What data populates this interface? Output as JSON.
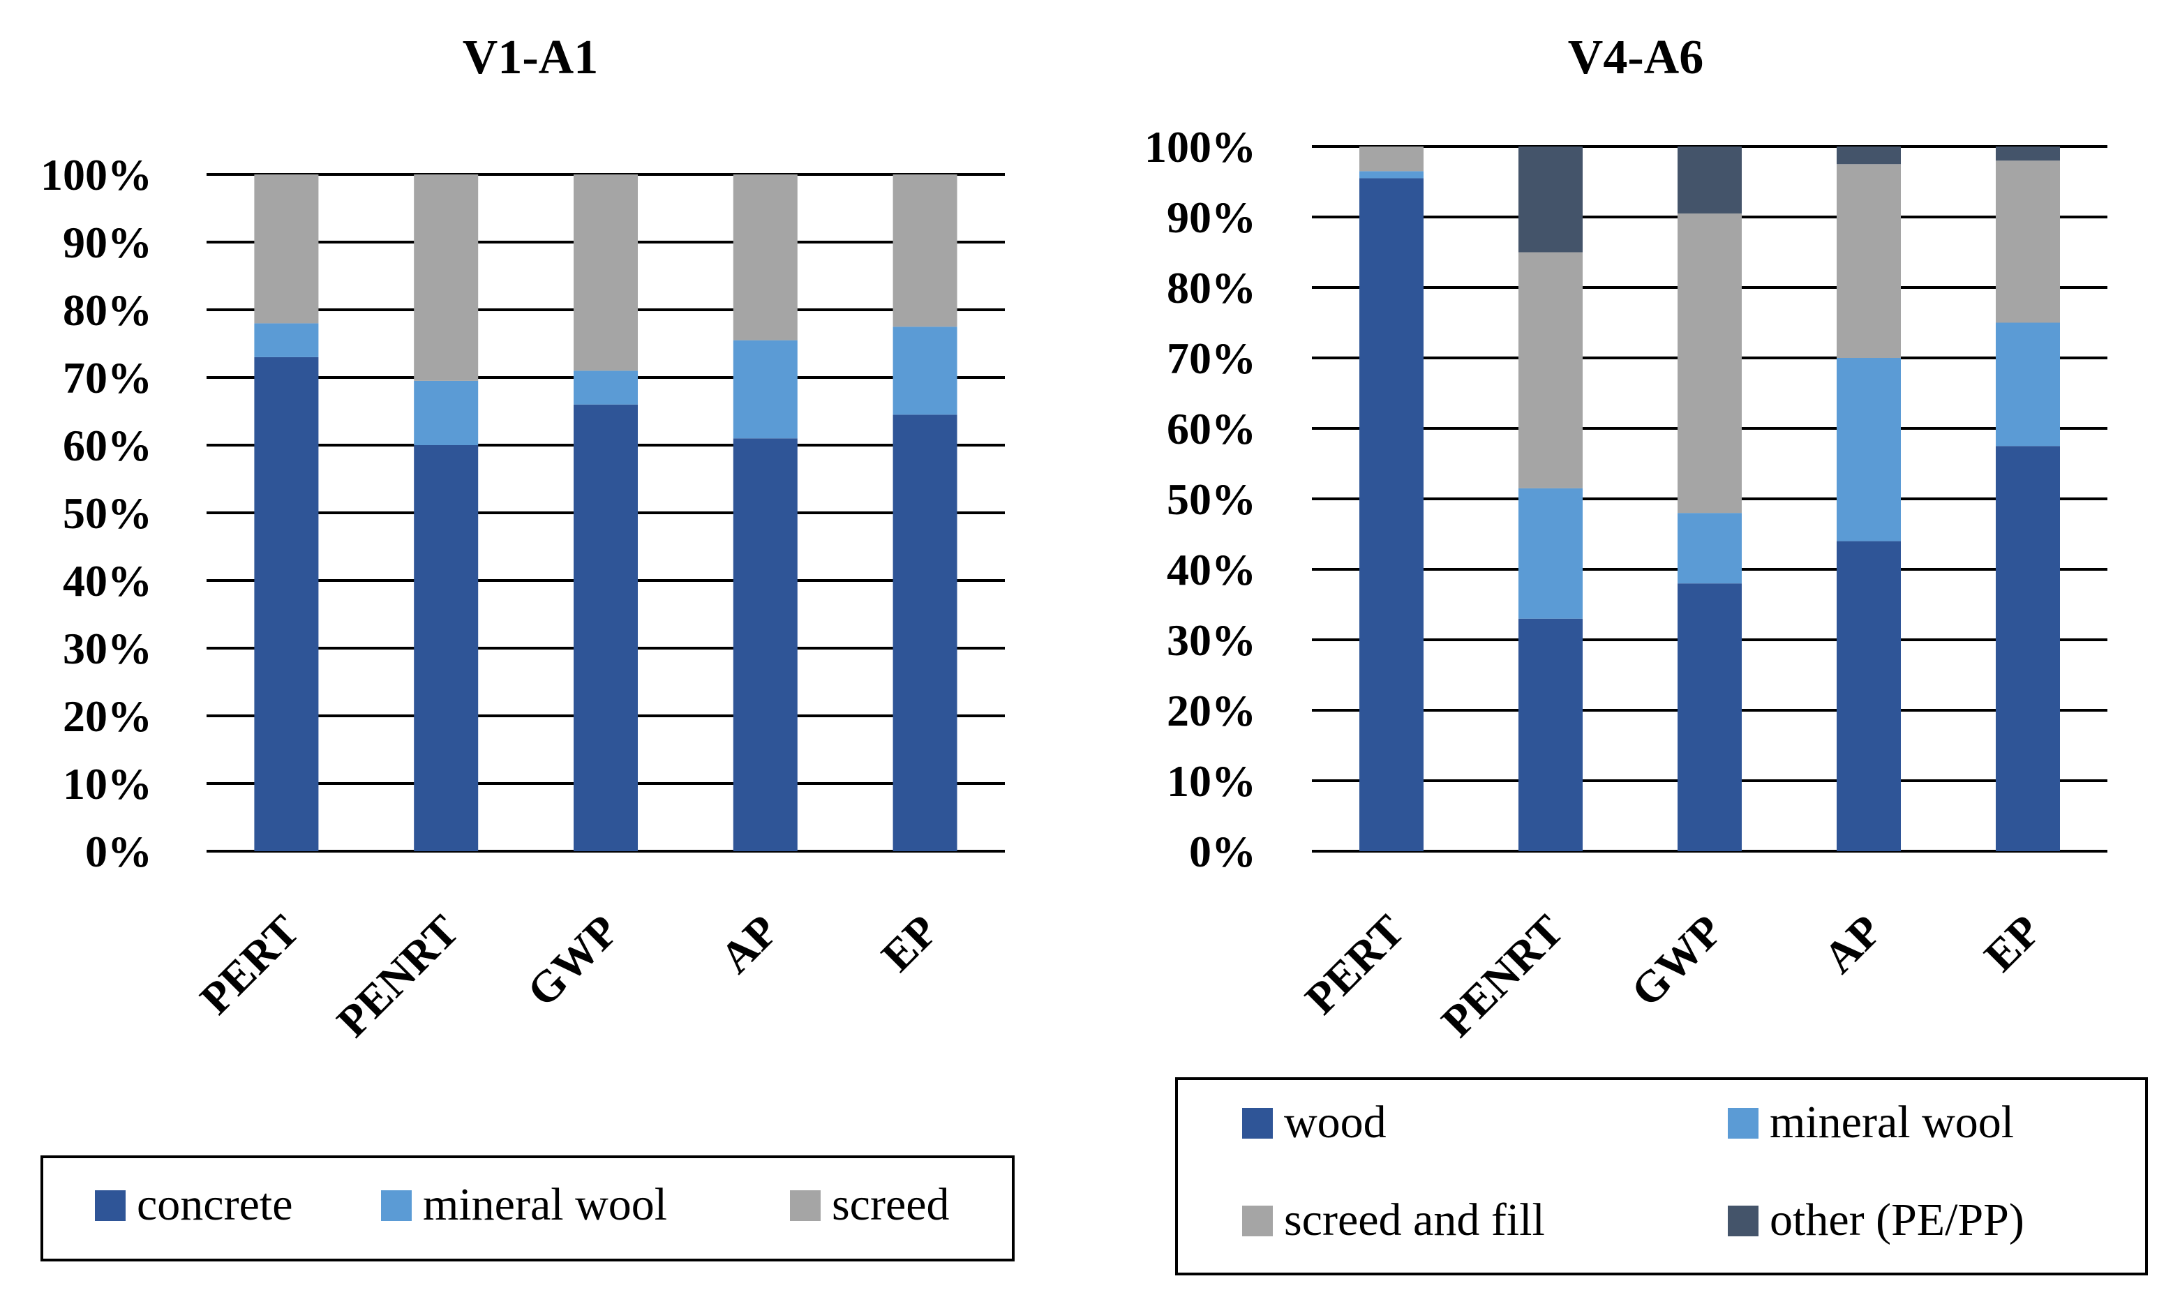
{
  "chart_data": [
    {
      "type": "bar",
      "stacked": true,
      "title": "V1-A1",
      "categories": [
        "PERT",
        "PENRT",
        "GWP",
        "AP",
        "EP"
      ],
      "ylim": [
        0,
        100
      ],
      "yticks": [
        "0%",
        "10%",
        "20%",
        "30%",
        "40%",
        "50%",
        "60%",
        "70%",
        "80%",
        "90%",
        "100%"
      ],
      "grid": true,
      "legend_position": "bottom",
      "series": [
        {
          "name": "concrete",
          "color": "#2F5597",
          "values": [
            73,
            60,
            66,
            61,
            64.5
          ]
        },
        {
          "name": "mineral wool",
          "color": "#5B9BD5",
          "values": [
            5,
            9.5,
            5,
            14.5,
            13
          ]
        },
        {
          "name": "screed",
          "color": "#A5A5A5",
          "values": [
            22,
            30.5,
            29,
            24.5,
            22.5
          ]
        }
      ]
    },
    {
      "type": "bar",
      "stacked": true,
      "title": "V4-A6",
      "categories": [
        "PERT",
        "PENRT",
        "GWP",
        "AP",
        "EP"
      ],
      "ylim": [
        0,
        100
      ],
      "yticks": [
        "0%",
        "10%",
        "20%",
        "30%",
        "40%",
        "50%",
        "60%",
        "70%",
        "80%",
        "90%",
        "100%"
      ],
      "grid": true,
      "legend_position": "bottom",
      "series": [
        {
          "name": "wood",
          "color": "#2F5597",
          "values": [
            95.5,
            33,
            38,
            44,
            57.5
          ]
        },
        {
          "name": "mineral wool",
          "color": "#5B9BD5",
          "values": [
            1,
            18.5,
            10,
            26,
            17.5
          ]
        },
        {
          "name": "screed and fill",
          "color": "#A5A5A5",
          "values": [
            3.5,
            33.5,
            42.5,
            27.5,
            23
          ]
        },
        {
          "name": "other (PE/PP)",
          "color": "#44546A",
          "values": [
            0,
            15,
            9.5,
            2.5,
            2
          ]
        }
      ]
    }
  ]
}
